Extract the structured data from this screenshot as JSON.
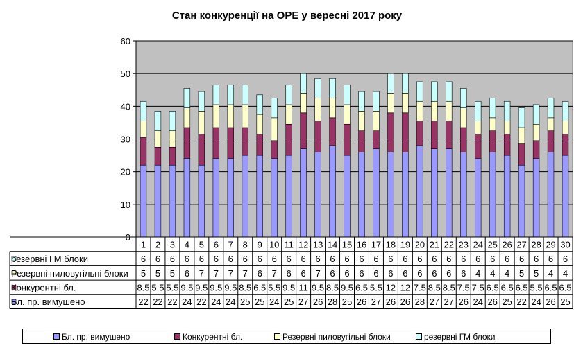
{
  "chart_data": {
    "type": "bar",
    "stacked": true,
    "title": "Стан конкуренції на ОРЕ  у вересні 2017 року",
    "ylim": [
      0,
      60
    ],
    "yticks": [
      0,
      10,
      20,
      30,
      40,
      50,
      60
    ],
    "grid": true,
    "legend_position": "bottom",
    "plot_background": "#c0c0c0",
    "categories": [
      "1",
      "2",
      "3",
      "4",
      "5",
      "6",
      "7",
      "8",
      "9",
      "10",
      "11",
      "12",
      "13",
      "14",
      "15",
      "16",
      "17",
      "18",
      "19",
      "20",
      "21",
      "22",
      "23",
      "24",
      "25",
      "26",
      "27",
      "28",
      "29",
      "30"
    ],
    "series": [
      {
        "name": "Бл. пр. вимушено",
        "color": "#9999ff",
        "values": [
          22,
          22,
          22,
          24,
          22,
          24,
          24,
          25,
          25,
          24,
          25,
          27,
          26,
          28,
          25,
          26,
          27,
          26,
          26,
          28,
          27,
          27,
          26,
          24,
          26,
          25,
          22,
          24,
          26,
          25
        ],
        "labels": [
          "22",
          "22",
          "22",
          "24",
          "22",
          "24",
          "24",
          "25",
          "25",
          "24",
          "25",
          "27",
          "26",
          "28",
          "25",
          "26",
          "27",
          "26",
          "26",
          "28",
          "27",
          "27",
          "26",
          "24",
          "26",
          "25",
          "22",
          "24",
          "26",
          "25"
        ]
      },
      {
        "name": "Конкурентні бл.",
        "color": "#993366",
        "values": [
          8.5,
          5.5,
          5.5,
          9.5,
          9.5,
          9.5,
          9.5,
          8.5,
          6.5,
          5.5,
          9.5,
          11,
          9.5,
          8.5,
          9.5,
          6.5,
          5.5,
          12,
          12,
          7.5,
          8.5,
          8.5,
          7.5,
          7.5,
          6.5,
          6.5,
          6.5,
          5.5,
          6.5,
          6.5
        ],
        "labels": [
          "8.5",
          "5.5",
          "5.5",
          "9.5",
          "9.5",
          "9.5",
          "9.5",
          "8.5",
          "6.5",
          "5.5",
          "9.5",
          "11",
          "9.5",
          "8.5",
          "9.5",
          "6.5",
          "5.5",
          "12",
          "12",
          "7.5",
          "8.5",
          "8.5",
          "7.5",
          "7.5",
          "6.5",
          "6.5",
          "6.5",
          "5.5",
          "6.5",
          "6.5"
        ]
      },
      {
        "name": "Резервні пиловугільні блоки",
        "color": "#ffffcc",
        "values": [
          5,
          5,
          5,
          6,
          7,
          7,
          7,
          7,
          6,
          7,
          6,
          6,
          7,
          6,
          6,
          6,
          6,
          6,
          6,
          6,
          6,
          6,
          6,
          4,
          4,
          4,
          5,
          5,
          4,
          4
        ],
        "labels": [
          "5",
          "5",
          "5",
          "6",
          "7",
          "7",
          "7",
          "7",
          "6",
          "7",
          "6",
          "6",
          "7",
          "6",
          "6",
          "6",
          "6",
          "6",
          "6",
          "6",
          "6",
          "6",
          "6",
          "4",
          "4",
          "4",
          "5",
          "5",
          "4",
          "4"
        ]
      },
      {
        "name": "резервні ГМ блоки",
        "color": "#ccffff",
        "values": [
          6,
          6,
          6,
          6,
          6,
          6,
          6,
          6,
          6,
          6,
          6,
          6,
          6,
          6,
          6,
          6,
          6,
          6,
          6,
          6,
          6,
          6,
          6,
          6,
          6,
          6,
          6,
          6,
          6,
          6
        ],
        "labels": [
          "6",
          "6",
          "6",
          "6",
          "6",
          "6",
          "6",
          "6",
          "6",
          "6",
          "6",
          "6",
          "6",
          "6",
          "6",
          "6",
          "6",
          "6",
          "6",
          "6",
          "6",
          "6",
          "6",
          "6",
          "6",
          "6",
          "6",
          "6",
          "6",
          "6"
        ]
      }
    ],
    "table_row_order": [
      3,
      2,
      1,
      0
    ]
  }
}
